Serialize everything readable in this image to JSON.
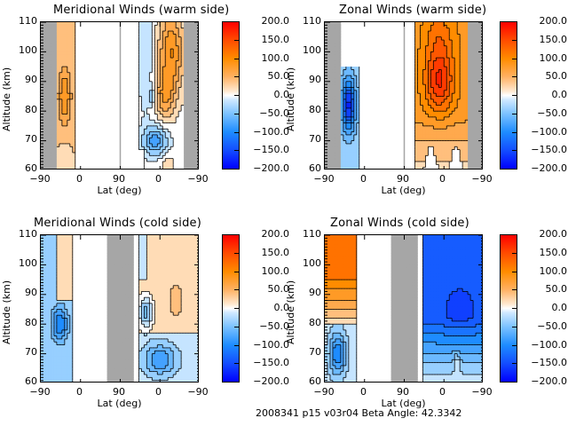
{
  "figure": {
    "caption": "2008341 p15 v03r04 Beta Angle: 42.3342"
  },
  "colorbar": {
    "labels": [
      "200.0",
      "150.0",
      "100.0",
      "50.0",
      "0.0",
      "-50.0",
      "-100.0",
      "-150.0",
      "-200.0"
    ],
    "colors": {
      "max": "#ff0000",
      "high": "#ff8c00",
      "pos_light": "#ffe8cf",
      "zero": "#ffffff",
      "neg_light": "#cfe8ff",
      "low": "#1e8cff",
      "min": "#0000ff"
    }
  },
  "chart_data": [
    {
      "type": "heatmap",
      "title": "Meridional Winds (warm side)",
      "xlabel": "Lat (deg)",
      "ylabel": "Altitude (km)",
      "xticks": [
        "-90",
        "0",
        "90",
        "0",
        "-90"
      ],
      "yticks": [
        "110",
        "100",
        "90",
        "80",
        "70",
        "60"
      ],
      "ylim": [
        60,
        110
      ],
      "clim": [
        -200,
        200
      ],
      "no_data_color": "#a6a6a6",
      "regions": [
        {
          "panel": "left",
          "lat_range": [
            -90,
            -70
          ],
          "state": "no data"
        },
        {
          "panel": "left",
          "lat_range": [
            -70,
            -50
          ],
          "alt_range": [
            60,
            110
          ],
          "value_range": [
            0,
            100
          ],
          "peak": "~90 at 80-90 km"
        },
        {
          "panel": "right",
          "lat_range": [
            30,
            0
          ],
          "alt_range": [
            85,
            110
          ],
          "value_range": [
            -50,
            0
          ]
        },
        {
          "panel": "right",
          "lat_range": [
            0,
            -60
          ],
          "alt_range": [
            85,
            110
          ],
          "value_range": [
            50,
            120
          ]
        },
        {
          "panel": "right",
          "lat_range": [
            20,
            -40
          ],
          "alt_range": [
            65,
            78
          ],
          "value_range": [
            -100,
            -20
          ]
        },
        {
          "panel": "right",
          "lat_range": [
            -60,
            -90
          ],
          "state": "no data"
        }
      ]
    },
    {
      "type": "heatmap",
      "title": "Zonal Winds (warm side)",
      "xlabel": "Lat (deg)",
      "ylabel": "Altitude (km)",
      "xticks": [
        "-90",
        "0",
        "90",
        "0",
        "-90"
      ],
      "yticks": [
        "110",
        "100",
        "90",
        "80",
        "70",
        "60"
      ],
      "ylim": [
        60,
        110
      ],
      "clim": [
        -200,
        200
      ],
      "no_data_color": "#a6a6a6",
      "regions": [
        {
          "panel": "left",
          "lat_range": [
            -90,
            -70
          ],
          "state": "no data"
        },
        {
          "panel": "left",
          "lat_range": [
            -70,
            -50
          ],
          "alt_range": [
            60,
            95
          ],
          "value_range": [
            -180,
            -20
          ],
          "peak": "~-170 at 80-85 km"
        },
        {
          "panel": "right",
          "lat_range": [
            20,
            -55
          ],
          "alt_range": [
            60,
            110
          ],
          "value_range": [
            20,
            170
          ],
          "peak": "~170 at 90 km, lat -20"
        },
        {
          "panel": "right",
          "lat_range": [
            -60,
            -90
          ],
          "state": "no data"
        }
      ]
    },
    {
      "type": "heatmap",
      "title": "Meridional Winds (cold side)",
      "xlabel": "Lat (deg)",
      "ylabel": "Altitude (km)",
      "xticks": [
        "-90",
        "0",
        "90",
        "0",
        "-90"
      ],
      "yticks": [
        "110",
        "100",
        "90",
        "80",
        "70",
        "60"
      ],
      "ylim": [
        60,
        110
      ],
      "clim": [
        -200,
        200
      ],
      "no_data_color": "#a6a6a6",
      "regions": [
        {
          "panel": "left",
          "lat_range": [
            -90,
            -50
          ],
          "alt_range": [
            60,
            110
          ],
          "value_range": [
            -120,
            20
          ],
          "peak": "~-110 at 80 km, lat -70"
        },
        {
          "panel": "left",
          "lat_range": [
            60,
            90
          ],
          "state": "no data"
        },
        {
          "panel": "right",
          "lat_range": [
            30,
            0
          ],
          "alt_range": [
            78,
            92
          ],
          "value_range": [
            -80,
            0
          ]
        },
        {
          "panel": "right",
          "lat_range": [
            0,
            -90
          ],
          "alt_range": [
            78,
            110
          ],
          "value_range": [
            0,
            40
          ]
        },
        {
          "panel": "right",
          "lat_range": [
            30,
            -60
          ],
          "alt_range": [
            60,
            75
          ],
          "value_range": [
            -90,
            -10
          ]
        }
      ]
    },
    {
      "type": "heatmap",
      "title": "Zonal Winds (cold side)",
      "xlabel": "Lat (deg)",
      "ylabel": "Altitude (km)",
      "xticks": [
        "-90",
        "0",
        "90",
        "0",
        "-90"
      ],
      "yticks": [
        "110",
        "100",
        "90",
        "80",
        "70",
        "60"
      ],
      "ylim": [
        60,
        110
      ],
      "clim": [
        -200,
        200
      ],
      "no_data_color": "#a6a6a6",
      "regions": [
        {
          "panel": "left",
          "lat_range": [
            -90,
            -50
          ],
          "alt_range": [
            82,
            110
          ],
          "value_range": [
            20,
            110
          ]
        },
        {
          "panel": "left",
          "lat_range": [
            -90,
            -50
          ],
          "alt_range": [
            60,
            80
          ],
          "value_range": [
            -120,
            -10
          ],
          "peak": "~-110 at 70 km, lat -75"
        },
        {
          "panel": "left",
          "lat_range": [
            60,
            90
          ],
          "state": "no data"
        },
        {
          "panel": "right",
          "lat_range": [
            20,
            -90
          ],
          "alt_range": [
            60,
            110
          ],
          "value_range": [
            -150,
            0
          ],
          "peak": "~-150 at 85 km"
        }
      ]
    }
  ]
}
